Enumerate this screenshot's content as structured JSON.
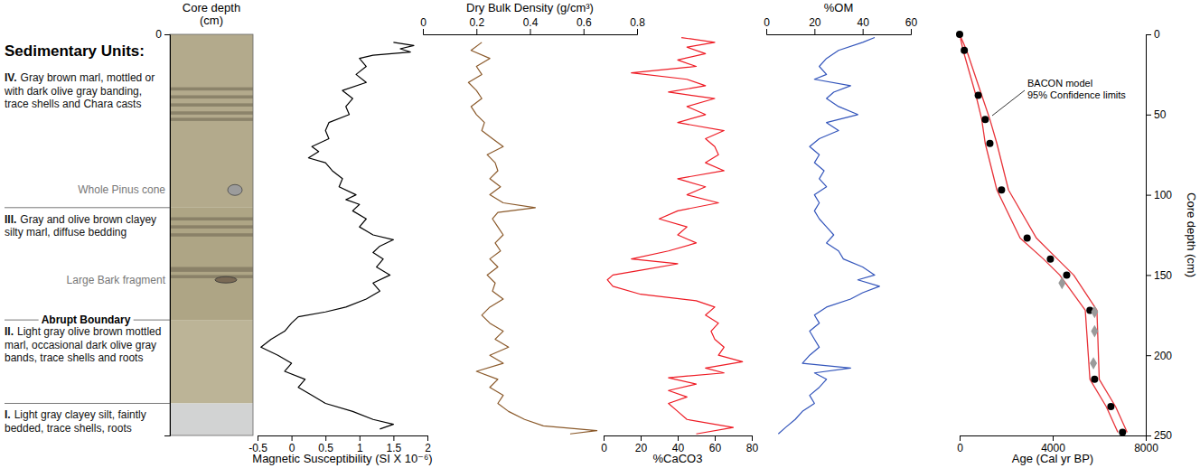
{
  "chart_data": [
    {
      "type": "lithology",
      "title": "Sedimentary Units:",
      "y_label": "Core depth (cm)",
      "ylim": [
        0,
        250
      ],
      "yticks": [
        0
      ],
      "units": [
        {
          "numeral": "IV.",
          "description": "Gray brown marl, mottled or with dark olive gray banding, trace shells and Chara casts",
          "top": 0,
          "bottom": 108,
          "color": "#b3aa8c"
        },
        {
          "numeral": "III.",
          "description": "Gray and olive brown clayey silty marl, diffuse bedding",
          "top": 108,
          "bottom": 178,
          "color": "#aea585"
        },
        {
          "numeral": "II.",
          "description": "Light gray olive brown mottled marl, occasional dark olive gray bands, trace shells and roots",
          "top": 178,
          "bottom": 230,
          "color": "#bcb497"
        },
        {
          "numeral": "I.",
          "description": "Light gray clayey silt, faintly bedded, trace shells, roots",
          "top": 230,
          "bottom": 250,
          "color": "#d2d3d3"
        }
      ],
      "bands": [
        {
          "top": 33,
          "bottom": 35
        },
        {
          "top": 38,
          "bottom": 40
        },
        {
          "top": 43,
          "bottom": 45
        },
        {
          "top": 48,
          "bottom": 50
        },
        {
          "top": 52,
          "bottom": 54
        },
        {
          "top": 114,
          "bottom": 116
        },
        {
          "top": 119,
          "bottom": 121
        },
        {
          "top": 124,
          "bottom": 126
        },
        {
          "top": 145,
          "bottom": 148
        },
        {
          "top": 150,
          "bottom": 152
        }
      ],
      "band_color": "#7e765f",
      "boundary_label": {
        "text": "Abrupt Boundary",
        "depth": 178
      },
      "annotations": [
        {
          "text": "Whole Pinus cone",
          "depth": 97
        },
        {
          "text": "Large Bark fragment",
          "depth": 153
        }
      ]
    },
    {
      "type": "line",
      "x_label": "Magnetic Susceptibility (SI X 10⁻⁶)",
      "xlim": [
        -0.5,
        2
      ],
      "xticks": [
        -0.5,
        0,
        0.5,
        1,
        1.5,
        2
      ],
      "ylim": [
        0,
        250
      ],
      "series": [
        {
          "color": "#000000",
          "x": [
            1.5,
            1.8,
            1.6,
            1.75,
            1.2,
            1.0,
            1.1,
            0.95,
            1.1,
            0.75,
            0.9,
            0.8,
            0.85,
            0.55,
            0.5,
            0.55,
            0.3,
            0.4,
            0.25,
            0.5,
            0.6,
            0.75,
            0.7,
            0.95,
            0.8,
            1.0,
            0.9,
            1.1,
            1.0,
            1.2,
            1.5,
            1.3,
            1.2,
            1.35,
            1.25,
            1.45,
            1.2,
            1.3,
            1.1,
            0.8,
            0.5,
            0.1,
            0.0,
            -0.1,
            -0.3,
            -0.45,
            -0.2,
            0.0,
            -0.1,
            0.2,
            0.1,
            0.3,
            0.5,
            0.9,
            1.2,
            1.5,
            1.3
          ],
          "y": [
            5,
            7,
            9,
            11,
            13,
            15,
            20,
            25,
            30,
            35,
            40,
            45,
            50,
            55,
            60,
            65,
            70,
            73,
            77,
            80,
            85,
            90,
            95,
            100,
            103,
            106,
            110,
            115,
            120,
            125,
            128,
            132,
            136,
            140,
            145,
            150,
            155,
            160,
            165,
            170,
            173,
            176,
            180,
            185,
            190,
            195,
            200,
            205,
            210,
            215,
            220,
            225,
            230,
            235,
            240,
            243,
            246
          ]
        }
      ]
    },
    {
      "type": "line",
      "x_label": "Dry Bulk Density (g/cm³)",
      "xlim": [
        0,
        0.8
      ],
      "xticks": [
        0,
        0.2,
        0.4,
        0.6,
        0.8
      ],
      "ylim": [
        0,
        250
      ],
      "series": [
        {
          "color": "#8b5a2b",
          "x": [
            0.22,
            0.18,
            0.25,
            0.2,
            0.22,
            0.17,
            0.2,
            0.22,
            0.18,
            0.2,
            0.23,
            0.22,
            0.26,
            0.3,
            0.24,
            0.27,
            0.28,
            0.25,
            0.29,
            0.25,
            0.3,
            0.42,
            0.28,
            0.26,
            0.28,
            0.3,
            0.27,
            0.29,
            0.25,
            0.28,
            0.24,
            0.27,
            0.26,
            0.3,
            0.25,
            0.22,
            0.25,
            0.3,
            0.27,
            0.32,
            0.25,
            0.3,
            0.2,
            0.28,
            0.25,
            0.3,
            0.28,
            0.32,
            0.38,
            0.45,
            0.65,
            0.55
          ],
          "y": [
            5,
            10,
            15,
            20,
            25,
            30,
            35,
            40,
            45,
            50,
            55,
            60,
            65,
            70,
            75,
            80,
            85,
            90,
            95,
            100,
            105,
            108,
            111,
            115,
            120,
            125,
            130,
            135,
            140,
            145,
            150,
            155,
            160,
            165,
            170,
            175,
            180,
            185,
            190,
            195,
            200,
            205,
            210,
            215,
            220,
            225,
            230,
            235,
            240,
            244,
            247,
            249
          ]
        }
      ]
    },
    {
      "type": "line",
      "x_label": "%CaCO3",
      "xlim": [
        0,
        80
      ],
      "xticks": [
        0,
        20,
        40,
        60,
        80
      ],
      "ylim": [
        0,
        250
      ],
      "series": [
        {
          "color": "#ee1c25",
          "x": [
            42,
            60,
            45,
            55,
            40,
            50,
            15,
            45,
            55,
            35,
            60,
            45,
            55,
            40,
            65,
            55,
            60,
            62,
            55,
            65,
            40,
            55,
            45,
            62,
            40,
            30,
            45,
            40,
            50,
            35,
            15,
            40,
            20,
            5,
            2,
            5,
            20,
            50,
            60,
            55,
            62,
            58,
            60,
            65,
            62,
            75,
            55,
            65,
            35,
            50,
            35,
            45,
            35,
            40,
            45,
            70,
            50
          ],
          "y": [
            2,
            5,
            8,
            12,
            16,
            20,
            24,
            28,
            32,
            36,
            40,
            45,
            50,
            55,
            60,
            65,
            70,
            75,
            80,
            85,
            90,
            95,
            100,
            105,
            110,
            115,
            120,
            125,
            130,
            135,
            140,
            143,
            147,
            150,
            153,
            157,
            162,
            166,
            170,
            175,
            180,
            185,
            190,
            195,
            200,
            204,
            208,
            211,
            214,
            218,
            222,
            226,
            230,
            235,
            240,
            245,
            249
          ]
        }
      ]
    },
    {
      "type": "line",
      "x_label": "%OM",
      "xlim": [
        0,
        60
      ],
      "xticks": [
        0,
        20,
        40,
        60
      ],
      "ylim": [
        0,
        250
      ],
      "series": [
        {
          "color": "#3355bb",
          "x": [
            45,
            40,
            30,
            25,
            22,
            25,
            20,
            35,
            28,
            25,
            30,
            38,
            25,
            30,
            22,
            18,
            22,
            20,
            24,
            22,
            25,
            20,
            22,
            20,
            22,
            25,
            28,
            25,
            30,
            32,
            40,
            45,
            38,
            47,
            40,
            35,
            25,
            20,
            22,
            18,
            20,
            22,
            18,
            15,
            35,
            20,
            25,
            22,
            18,
            20,
            15,
            12,
            8,
            5
          ],
          "y": [
            2,
            5,
            10,
            15,
            20,
            25,
            28,
            32,
            36,
            40,
            45,
            50,
            55,
            60,
            65,
            70,
            75,
            80,
            85,
            90,
            95,
            100,
            105,
            110,
            115,
            120,
            125,
            130,
            135,
            140,
            145,
            150,
            153,
            157,
            161,
            165,
            170,
            175,
            180,
            185,
            190,
            195,
            200,
            205,
            208,
            211,
            215,
            220,
            225,
            230,
            235,
            240,
            245,
            249
          ]
        }
      ]
    },
    {
      "type": "line",
      "x_label": "Age (Cal yr BP)",
      "xlim": [
        0,
        8000
      ],
      "xticks": [
        0,
        4000,
        8000
      ],
      "y_label": "Core depth (cm)",
      "ylim": [
        0,
        250
      ],
      "yticks": [
        0,
        50,
        100,
        150,
        200,
        250
      ],
      "annotation": [
        "BACON model",
        "95% Confidence limits"
      ],
      "series": [
        {
          "color": "#e8343a",
          "x": [
            0,
            150,
            700,
            950,
            1100,
            1600,
            2600,
            3600,
            4300,
            5400,
            5600,
            6300,
            6800
          ],
          "y": [
            0,
            10,
            38,
            53,
            68,
            97,
            127,
            140,
            150,
            172,
            215,
            232,
            248
          ]
        },
        {
          "color": "#e8343a",
          "x": [
            0,
            300,
            950,
            1300,
            1600,
            2100,
            3300,
            4200,
            4900,
            5900,
            6000,
            6700,
            7200
          ],
          "y": [
            0,
            10,
            38,
            53,
            68,
            97,
            127,
            140,
            150,
            172,
            215,
            232,
            248
          ]
        },
        {
          "type": "scatter",
          "marker": "circle",
          "color": "#000000",
          "x": [
            0,
            200,
            800,
            1100,
            1300,
            1800,
            2900,
            3900,
            4600,
            5600,
            5800,
            6500,
            7000
          ],
          "y": [
            0,
            10,
            38,
            53,
            68,
            97,
            127,
            140,
            150,
            172,
            215,
            232,
            248
          ]
        },
        {
          "type": "scatter",
          "marker": "diamond",
          "color": "#9a9a9a",
          "x": [
            4400,
            5800,
            5800,
            5750
          ],
          "y": [
            155,
            173,
            185,
            205
          ]
        }
      ]
    }
  ]
}
